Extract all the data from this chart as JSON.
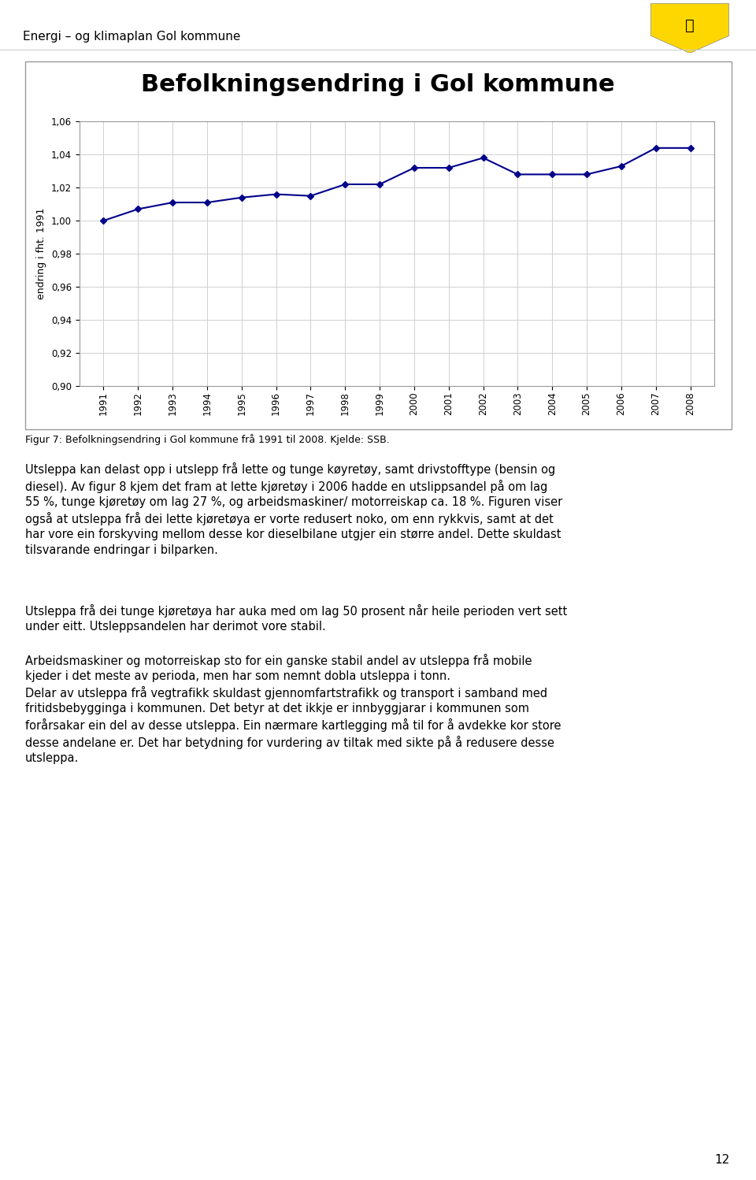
{
  "title": "Befolkningsendring i Gol kommune",
  "ylabel": "endring i fht. 1991",
  "years": [
    1991,
    1992,
    1993,
    1994,
    1995,
    1996,
    1997,
    1998,
    1999,
    2000,
    2001,
    2002,
    2003,
    2004,
    2005,
    2006,
    2007,
    2008
  ],
  "values": [
    1.0,
    1.007,
    1.011,
    1.011,
    1.014,
    1.016,
    1.015,
    1.022,
    1.022,
    1.032,
    1.032,
    1.038,
    1.028,
    1.028,
    1.028,
    1.033,
    1.044,
    1.044
  ],
  "line_color": "#00008B",
  "marker": "D",
  "marker_size": 4,
  "ylim": [
    0.9,
    1.06
  ],
  "yticks": [
    0.9,
    0.92,
    0.94,
    0.96,
    0.98,
    1.0,
    1.02,
    1.04,
    1.06
  ],
  "grid_color": "#d0d0d0",
  "chart_bg": "#ffffff",
  "page_bg": "#ffffff",
  "border_color": "#999999",
  "header_text": "Energi – og klimaplan Gol kommune",
  "caption": "Figur 7: Befolkningsendring i Gol kommune frå 1991 til 2008. Kjelde: SSB.",
  "body_text1": "Utsleppa kan delast opp i utslepp frå lette og tunge køyretøy, samt drivstofftype (bensin og\ndiesel). Av figur 8 kjem det fram at lette kjøretøy i 2006 hadde en utslippsandel på om lag\n55 %, tunge kjøretøy om lag 27 %, og arbeidsmaskiner/ motorreiskap ca. 18 %. Figuren viser\nogså at utsleppa frå dei lette kjøretøya er vorte redusert noko, om enn rykkvis, samt at det\nhar vore ein forskyving mellom desse kor dieselbilane utgjer ein større andel. Dette skuldast\ntilsvarande endringar i bilparken.",
  "body_text2": "Utsleppa frå dei tunge kjøretøya har auka med om lag 50 prosent når heile perioden vert sett\nunder eitt. Utsleppsandelen har derimot vore stabil.",
  "body_text3": "Arbeidsmaskiner og motorreiskap sto for ein ganske stabil andel av utsleppa frå mobile\nkjeder i det meste av perioda, men har som nemnt dobla utsleppa i tonn.\nDelar av utsleppa frå vegtrafikk skuldast gjennomfartstrafikk og transport i samband med\nfritidsbebygginga i kommunen. Det betyr at det ikkje er innbyggjarar i kommunen som\nforårsakar ein del av desse utsleppa. Ein nærmare kartlegging må til for å avdekke kor store\ndesse andelane er. Det har betydning for vurdering av tiltak med sikte på å redusere desse\nutsleppa.",
  "page_number": "12",
  "title_fontsize": 22,
  "label_fontsize": 9,
  "tick_fontsize": 8.5,
  "header_fontsize": 11,
  "caption_fontsize": 9,
  "body_fontsize": 10.5
}
